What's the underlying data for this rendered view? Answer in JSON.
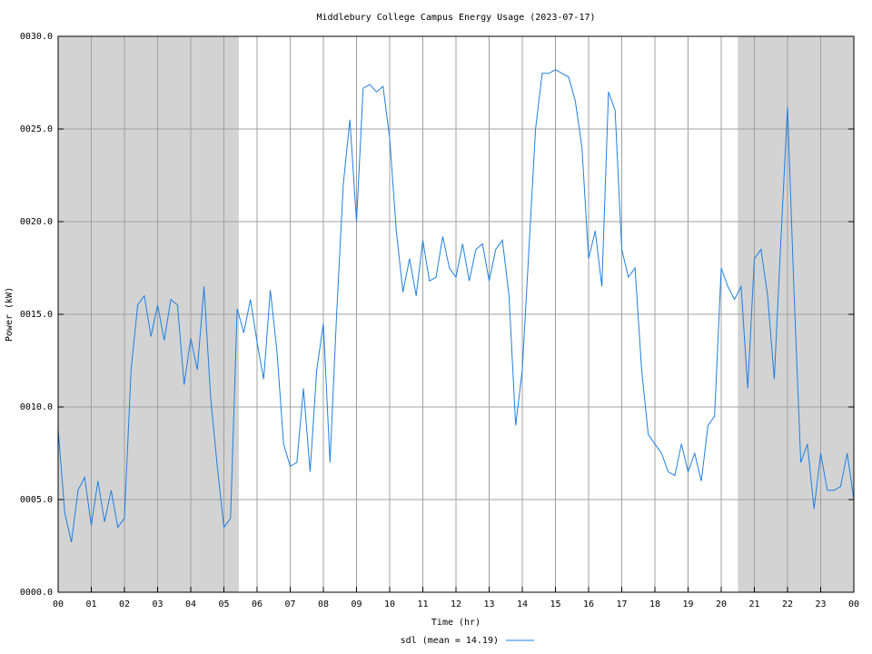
{
  "chart_data": {
    "type": "line",
    "title": "Middlebury College Campus Energy Usage (2023-07-17)",
    "x_label": "Time (hr)",
    "y_label": "Power (kW)",
    "xlim": [
      0,
      24
    ],
    "ylim": [
      0,
      30
    ],
    "xticks": [
      {
        "value": 0,
        "label": "00"
      },
      {
        "value": 1,
        "label": "01"
      },
      {
        "value": 2,
        "label": "02"
      },
      {
        "value": 3,
        "label": "03"
      },
      {
        "value": 4,
        "label": "04"
      },
      {
        "value": 5,
        "label": "05"
      },
      {
        "value": 6,
        "label": "06"
      },
      {
        "value": 7,
        "label": "07"
      },
      {
        "value": 8,
        "label": "08"
      },
      {
        "value": 9,
        "label": "09"
      },
      {
        "value": 10,
        "label": "10"
      },
      {
        "value": 11,
        "label": "11"
      },
      {
        "value": 12,
        "label": "12"
      },
      {
        "value": 13,
        "label": "13"
      },
      {
        "value": 14,
        "label": "14"
      },
      {
        "value": 15,
        "label": "15"
      },
      {
        "value": 16,
        "label": "16"
      },
      {
        "value": 17,
        "label": "17"
      },
      {
        "value": 18,
        "label": "18"
      },
      {
        "value": 19,
        "label": "19"
      },
      {
        "value": 20,
        "label": "20"
      },
      {
        "value": 21,
        "label": "21"
      },
      {
        "value": 22,
        "label": "22"
      },
      {
        "value": 23,
        "label": "23"
      },
      {
        "value": 24,
        "label": "00"
      }
    ],
    "yticks": [
      {
        "value": 0,
        "label": "0000.0"
      },
      {
        "value": 5,
        "label": "0005.0"
      },
      {
        "value": 10,
        "label": "0010.0"
      },
      {
        "value": 15,
        "label": "0015.0"
      },
      {
        "value": 20,
        "label": "0020.0"
      },
      {
        "value": 25,
        "label": "0025.0"
      },
      {
        "value": 30,
        "label": "0030.0"
      }
    ],
    "grid": true,
    "shaded_regions": [
      [
        0,
        5.45
      ],
      [
        20.5,
        24
      ]
    ],
    "shade_color": "#d3d3d3",
    "legend": "bottom",
    "x": [
      0,
      0.2,
      0.4,
      0.6,
      0.8,
      1,
      1.2,
      1.4,
      1.6,
      1.8,
      2,
      2.2,
      2.4,
      2.6,
      2.8,
      3,
      3.2,
      3.4,
      3.6,
      3.8,
      4,
      4.2,
      4.4,
      4.6,
      4.8,
      5,
      5.2,
      5.4,
      5.6,
      5.8,
      6,
      6.2,
      6.4,
      6.6,
      6.8,
      7,
      7.2,
      7.4,
      7.6,
      7.8,
      8,
      8.2,
      8.4,
      8.6,
      8.8,
      9,
      9.2,
      9.4,
      9.6,
      9.8,
      10,
      10.2,
      10.4,
      10.6,
      10.8,
      11,
      11.2,
      11.4,
      11.6,
      11.8,
      12,
      12.2,
      12.4,
      12.6,
      12.8,
      13,
      13.2,
      13.4,
      13.6,
      13.8,
      14,
      14.2,
      14.4,
      14.6,
      14.8,
      15,
      15.2,
      15.4,
      15.6,
      15.8,
      16,
      16.2,
      16.4,
      16.6,
      16.8,
      17,
      17.2,
      17.4,
      17.6,
      17.8,
      18,
      18.2,
      18.4,
      18.6,
      18.8,
      19,
      19.2,
      19.4,
      19.6,
      19.8,
      20,
      20.2,
      20.4,
      20.6,
      20.8,
      21,
      21.2,
      21.4,
      21.6,
      21.8,
      22,
      22.2,
      22.4,
      22.6,
      22.8,
      23,
      23.2,
      23.4,
      23.6,
      23.8,
      24
    ],
    "series": [
      {
        "name": "sdl (mean = 14.19)",
        "color": "#1f7fe0",
        "values": [
          8.8,
          4.3,
          2.7,
          5.5,
          6.2,
          3.6,
          6.0,
          3.8,
          5.5,
          3.5,
          4.0,
          12.0,
          15.5,
          16.0,
          13.8,
          15.5,
          13.6,
          15.8,
          15.5,
          11.2,
          13.7,
          12.0,
          16.5,
          10.5,
          6.8,
          3.5,
          4.0,
          15.3,
          14.0,
          15.8,
          13.5,
          11.5,
          16.3,
          13.0,
          8.0,
          6.8,
          7.0,
          11.0,
          6.5,
          12.0,
          14.5,
          7.0,
          15.0,
          22.0,
          25.5,
          20.0,
          27.2,
          27.4,
          27.0,
          27.3,
          24.5,
          19.5,
          16.2,
          18.0,
          16.0,
          19.0,
          16.8,
          17.0,
          19.2,
          17.5,
          17.0,
          18.8,
          16.8,
          18.5,
          18.8,
          16.8,
          18.5,
          19.0,
          16.0,
          9.0,
          12.0,
          18.5,
          25.0,
          28.0,
          28.0,
          28.2,
          28.0,
          27.8,
          26.5,
          24.0,
          18.0,
          19.5,
          16.5,
          27.0,
          26.0,
          18.5,
          17.0,
          17.5,
          12.0,
          8.5,
          8.0,
          7.5,
          6.5,
          6.3,
          8.0,
          6.5,
          7.5,
          6.0,
          9.0,
          9.5,
          17.5,
          16.5,
          15.8,
          16.5,
          11.0,
          18.0,
          18.5,
          16.0,
          11.5,
          19.0,
          26.2,
          16.0,
          7.0,
          8.0,
          4.5,
          7.5,
          5.5,
          5.5,
          5.7,
          7.5,
          5.0
        ]
      }
    ]
  }
}
